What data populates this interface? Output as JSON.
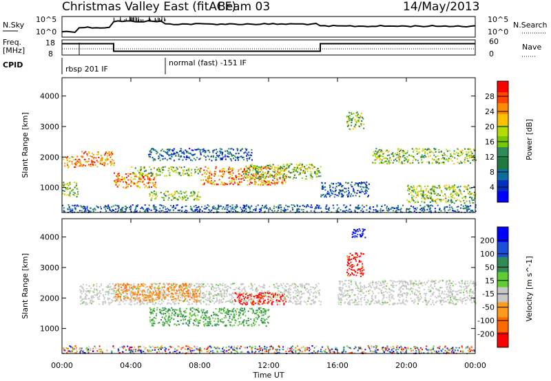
{
  "header": {
    "title": "Christmas Valley East (fitACF)",
    "beam": "Beam 03",
    "date": "14/May/2013"
  },
  "status": {
    "nsky_label": "N.Sky",
    "nsky_ticks": [
      "10^5",
      "10^0"
    ],
    "nsearch_label": "N.Search",
    "nsearch_ticks": [
      "10^5",
      "10^0"
    ],
    "freq_label_1": "Freq.",
    "freq_label_2": "[MHz]",
    "freq_ticks": [
      "18",
      "8"
    ],
    "nave_label": "Nave",
    "nave_ticks": [
      "60",
      "0"
    ],
    "cpid_label": "CPID",
    "cpid_segments": [
      "rbsp 201 IF",
      "normal (fast) -151 IF"
    ]
  },
  "axes": {
    "ylabel": "Slant Range [km]",
    "xlabel": "Time UT",
    "xticks": [
      "00:00",
      "04:00",
      "08:00",
      "12:00",
      "16:00",
      "20:00",
      "00:00"
    ],
    "yticks": [
      "1000",
      "2000",
      "3000",
      "4000"
    ]
  },
  "colorbars": {
    "power": {
      "label": "Power [dB]",
      "ticks": [
        "28",
        "24",
        "20",
        "16",
        "12",
        "8",
        "4"
      ],
      "colors": [
        "#ff0000",
        "#ff4500",
        "#ff8c00",
        "#ffc000",
        "#b4dc00",
        "#78c800",
        "#2e8b57",
        "#1e7a3c",
        "#0b6e9e",
        "#0030c0",
        "#0000ff"
      ]
    },
    "velocity": {
      "label": "Velocity [m s^-1]",
      "ticks": [
        "200",
        "100",
        "50",
        "15",
        "-15",
        "-50",
        "-100",
        "-200"
      ],
      "colors": [
        "#0000ff",
        "#1a4fd8",
        "#2e8b57",
        "#5ccd32",
        "#c8c8c8",
        "#ff9a1a",
        "#ff6a00",
        "#ff0000"
      ]
    }
  },
  "chart_data": [
    {
      "type": "heatmap",
      "name": "power",
      "xlabel": "Time UT",
      "ylabel": "Slant Range [km]",
      "xlim": [
        0,
        24
      ],
      "ylim": [
        180,
        4600
      ],
      "clabel": "Power [dB]",
      "clim": [
        0,
        32
      ],
      "scatter_regions": [
        {
          "t": [
            0,
            1.1
          ],
          "r": [
            1650,
            2050
          ],
          "level": "high"
        },
        {
          "t": [
            0,
            0.9
          ],
          "r": [
            700,
            1200
          ],
          "level": "mid"
        },
        {
          "t": [
            1.1,
            3
          ],
          "r": [
            1700,
            2200
          ],
          "level": "high"
        },
        {
          "t": [
            3,
            5.5
          ],
          "r": [
            1000,
            1500
          ],
          "level": "high"
        },
        {
          "t": [
            4,
            8
          ],
          "r": [
            1400,
            1700
          ],
          "level": "mid"
        },
        {
          "t": [
            5,
            8
          ],
          "r": [
            600,
            900
          ],
          "level": "mid"
        },
        {
          "t": [
            8,
            13
          ],
          "r": [
            1100,
            1700
          ],
          "level": "high"
        },
        {
          "t": [
            10.5,
            15
          ],
          "r": [
            1300,
            1800
          ],
          "level": "mid"
        },
        {
          "t": [
            5,
            11
          ],
          "r": [
            1900,
            2300
          ],
          "level": "low"
        },
        {
          "t": [
            15,
            17.8
          ],
          "r": [
            700,
            1200
          ],
          "level": "low"
        },
        {
          "t": [
            16.5,
            17.5
          ],
          "r": [
            2900,
            3500
          ],
          "level": "mid"
        },
        {
          "t": [
            18,
            24
          ],
          "r": [
            1800,
            2300
          ],
          "level": "mid"
        },
        {
          "t": [
            20,
            24
          ],
          "r": [
            500,
            1100
          ],
          "level": "mid"
        },
        {
          "t": [
            0,
            24
          ],
          "r": [
            200,
            450
          ],
          "level": "low"
        }
      ]
    },
    {
      "type": "heatmap",
      "name": "velocity",
      "xlabel": "Time UT",
      "ylabel": "Slant Range [km]",
      "xlim": [
        0,
        24
      ],
      "ylim": [
        180,
        4600
      ],
      "clabel": "Velocity [m s^-1]",
      "clim": [
        -200,
        200
      ],
      "scatter_regions": [
        {
          "t": [
            1,
            15
          ],
          "r": [
            1800,
            2500
          ],
          "v": "gs"
        },
        {
          "t": [
            16,
            24
          ],
          "r": [
            1800,
            2600
          ],
          "v": "gs"
        },
        {
          "t": [
            3,
            8
          ],
          "r": [
            1900,
            2500
          ],
          "v": "neg"
        },
        {
          "t": [
            5,
            12
          ],
          "r": [
            1100,
            1700
          ],
          "v": "pos"
        },
        {
          "t": [
            10,
            13
          ],
          "r": [
            1800,
            2200
          ],
          "v": "neg_strong"
        },
        {
          "t": [
            16.5,
            17.5
          ],
          "r": [
            2700,
            3500
          ],
          "v": "neg_strong"
        },
        {
          "t": [
            16.8,
            17.6
          ],
          "r": [
            4000,
            4300
          ],
          "v": "pos_strong"
        },
        {
          "t": [
            0,
            24
          ],
          "r": [
            200,
            450
          ],
          "v": "mixed"
        }
      ]
    },
    {
      "type": "line",
      "name": "frequency",
      "ylabel": "Freq. [MHz]",
      "ylim": [
        8,
        18
      ],
      "segments": [
        {
          "t": [
            0,
            3
          ],
          "value": 15.5
        },
        {
          "t": [
            3,
            15
          ],
          "value": 10.5
        },
        {
          "t": [
            15,
            24
          ],
          "value": 15.5
        }
      ]
    }
  ]
}
